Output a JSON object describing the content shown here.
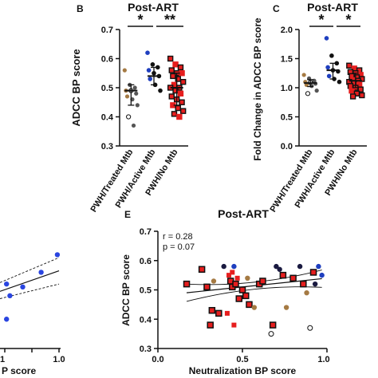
{
  "panels": {
    "B": {
      "letter": "B"
    },
    "C": {
      "letter": "C"
    },
    "E": {
      "letter": "E"
    },
    "D": {
      "tick_left": "1",
      "tick_right": "1.0",
      "xlabel_fragment": "P score"
    }
  },
  "colors": {
    "treated": "#a57a43",
    "active": "#1f3fbf",
    "nomtb_fill": "#e61e1e",
    "black": "#111111",
    "d_points": "#2a45e0"
  },
  "chart_data": [
    {
      "panel": "B",
      "type": "scatter",
      "title": "Post-ART",
      "ylabel": "ADCC BP score",
      "xlabel": "",
      "ylim": [
        0.3,
        0.7
      ],
      "yticks": [
        "0.3",
        "0.4",
        "0.5",
        "0.6",
        "0.7"
      ],
      "categories": [
        "PWH/Treated Mtb",
        "PWH/Active Mtb",
        "PWH/No Mtb"
      ],
      "significance": [
        {
          "from": 0,
          "to": 1,
          "label": "*"
        },
        {
          "from": 1,
          "to": 2,
          "label": "**"
        }
      ],
      "groups": [
        {
          "median": 0.49,
          "q1": 0.44,
          "q3": 0.51,
          "values": [
            0.56,
            0.51,
            0.5,
            0.49,
            0.49,
            0.48,
            0.47,
            0.46,
            0.44,
            0.4,
            0.37
          ]
        },
        {
          "median": 0.54,
          "q1": 0.51,
          "q3": 0.57,
          "values": [
            0.62,
            0.58,
            0.57,
            0.56,
            0.55,
            0.54,
            0.53,
            0.51,
            0.49
          ]
        },
        {
          "median": 0.5,
          "q1": 0.44,
          "q3": 0.55,
          "values": [
            0.6,
            0.58,
            0.57,
            0.56,
            0.55,
            0.55,
            0.54,
            0.53,
            0.52,
            0.51,
            0.5,
            0.5,
            0.49,
            0.48,
            0.47,
            0.46,
            0.45,
            0.44,
            0.43,
            0.42,
            0.41,
            0.4
          ]
        }
      ]
    },
    {
      "panel": "C",
      "type": "scatter",
      "title": "Post-ART",
      "ylabel": "Fold Change in ADCC BP score",
      "xlabel": "",
      "ylim": [
        0.0,
        2.0
      ],
      "yticks": [
        "0.0",
        "0.5",
        "1.0",
        "1.5",
        "2.0"
      ],
      "categories": [
        "PWH/Treated Mtb",
        "PWH/Active Mtb",
        "PWH/No Mtb"
      ],
      "significance": [
        {
          "from": 0,
          "to": 1,
          "label": "*"
        },
        {
          "from": 1,
          "to": 2,
          "label": "*"
        }
      ],
      "groups": [
        {
          "median": 1.08,
          "q1": 1.02,
          "q3": 1.14,
          "values": [
            1.22,
            1.16,
            1.12,
            1.1,
            1.09,
            1.07,
            1.05,
            1.03,
            0.95,
            0.9
          ]
        },
        {
          "median": 1.3,
          "q1": 1.15,
          "q3": 1.42,
          "values": [
            1.85,
            1.55,
            1.42,
            1.35,
            1.3,
            1.28,
            1.2,
            1.15,
            1.1
          ]
        },
        {
          "median": 1.12,
          "q1": 1.0,
          "q3": 1.25,
          "values": [
            1.38,
            1.33,
            1.3,
            1.27,
            1.25,
            1.22,
            1.2,
            1.18,
            1.15,
            1.13,
            1.12,
            1.1,
            1.08,
            1.05,
            1.03,
            1.0,
            0.97,
            0.95,
            0.9,
            0.87,
            0.85
          ]
        }
      ]
    },
    {
      "panel": "E",
      "type": "scatter",
      "title": "Post-ART",
      "xlabel": "Neutralization BP score",
      "ylabel": "ADCC BP score",
      "xlim": [
        0.0,
        1.0
      ],
      "ylim": [
        0.3,
        0.7
      ],
      "xticks": [
        "0.0",
        "0.5",
        "1.0"
      ],
      "yticks": [
        "0.3",
        "0.4",
        "0.5",
        "0.6",
        "0.7"
      ],
      "annotations": [
        "r = 0.28",
        "p = 0.07"
      ],
      "regression": {
        "slope": 0.06,
        "intercept": 0.48
      },
      "points": [
        {
          "x": 0.17,
          "y": 0.52,
          "kind": "nomtb"
        },
        {
          "x": 0.26,
          "y": 0.57,
          "kind": "nomtb"
        },
        {
          "x": 0.29,
          "y": 0.51,
          "kind": "nomtb"
        },
        {
          "x": 0.31,
          "y": 0.38,
          "kind": "nomtb"
        },
        {
          "x": 0.32,
          "y": 0.43,
          "kind": "nomtb"
        },
        {
          "x": 0.36,
          "y": 0.42,
          "kind": "nomtb"
        },
        {
          "x": 0.43,
          "y": 0.53,
          "kind": "nomtb"
        },
        {
          "x": 0.44,
          "y": 0.51,
          "kind": "nomtb"
        },
        {
          "x": 0.46,
          "y": 0.52,
          "kind": "nomtb"
        },
        {
          "x": 0.48,
          "y": 0.47,
          "kind": "nomtb"
        },
        {
          "x": 0.5,
          "y": 0.5,
          "kind": "nomtb"
        },
        {
          "x": 0.52,
          "y": 0.48,
          "kind": "nomtb"
        },
        {
          "x": 0.54,
          "y": 0.45,
          "kind": "nomtb"
        },
        {
          "x": 0.6,
          "y": 0.52,
          "kind": "nomtb"
        },
        {
          "x": 0.62,
          "y": 0.53,
          "kind": "nomtb"
        },
        {
          "x": 0.68,
          "y": 0.38,
          "kind": "nomtb"
        },
        {
          "x": 0.74,
          "y": 0.55,
          "kind": "nomtb"
        },
        {
          "x": 0.8,
          "y": 0.54,
          "kind": "nomtb"
        },
        {
          "x": 0.86,
          "y": 0.52,
          "kind": "nomtb"
        },
        {
          "x": 0.92,
          "y": 0.56,
          "kind": "nomtb"
        },
        {
          "x": 0.41,
          "y": 0.42,
          "kind": "red"
        },
        {
          "x": 0.45,
          "y": 0.38,
          "kind": "red"
        },
        {
          "x": 0.44,
          "y": 0.56,
          "kind": "red"
        },
        {
          "x": 0.47,
          "y": 0.54,
          "kind": "red"
        },
        {
          "x": 0.42,
          "y": 0.55,
          "kind": "red"
        },
        {
          "x": 0.33,
          "y": 0.53,
          "kind": "treated"
        },
        {
          "x": 0.53,
          "y": 0.54,
          "kind": "treated"
        },
        {
          "x": 0.57,
          "y": 0.44,
          "kind": "treated"
        },
        {
          "x": 0.76,
          "y": 0.44,
          "kind": "treated"
        },
        {
          "x": 0.88,
          "y": 0.49,
          "kind": "treated"
        },
        {
          "x": 0.67,
          "y": 0.35,
          "kind": "open"
        },
        {
          "x": 0.9,
          "y": 0.37,
          "kind": "open"
        },
        {
          "x": 0.45,
          "y": 0.58,
          "kind": "active"
        },
        {
          "x": 0.95,
          "y": 0.58,
          "kind": "active"
        },
        {
          "x": 0.97,
          "y": 0.55,
          "kind": "active"
        },
        {
          "x": 0.39,
          "y": 0.58,
          "kind": "black"
        },
        {
          "x": 0.7,
          "y": 0.58,
          "kind": "black"
        },
        {
          "x": 0.72,
          "y": 0.57,
          "kind": "black"
        },
        {
          "x": 0.84,
          "y": 0.58,
          "kind": "black"
        },
        {
          "x": 0.93,
          "y": 0.52,
          "kind": "black"
        }
      ]
    },
    {
      "panel": "D",
      "type": "scatter",
      "xlim": [
        0.0,
        1.0
      ],
      "points": [
        {
          "x": 0.97,
          "y": 0.62
        },
        {
          "x": 0.68,
          "y": 0.56
        },
        {
          "x": 0.06,
          "y": 0.52
        },
        {
          "x": 0.35,
          "y": 0.51
        },
        {
          "x": 0.12,
          "y": 0.48
        },
        {
          "x": 0.06,
          "y": 0.4
        }
      ]
    }
  ]
}
